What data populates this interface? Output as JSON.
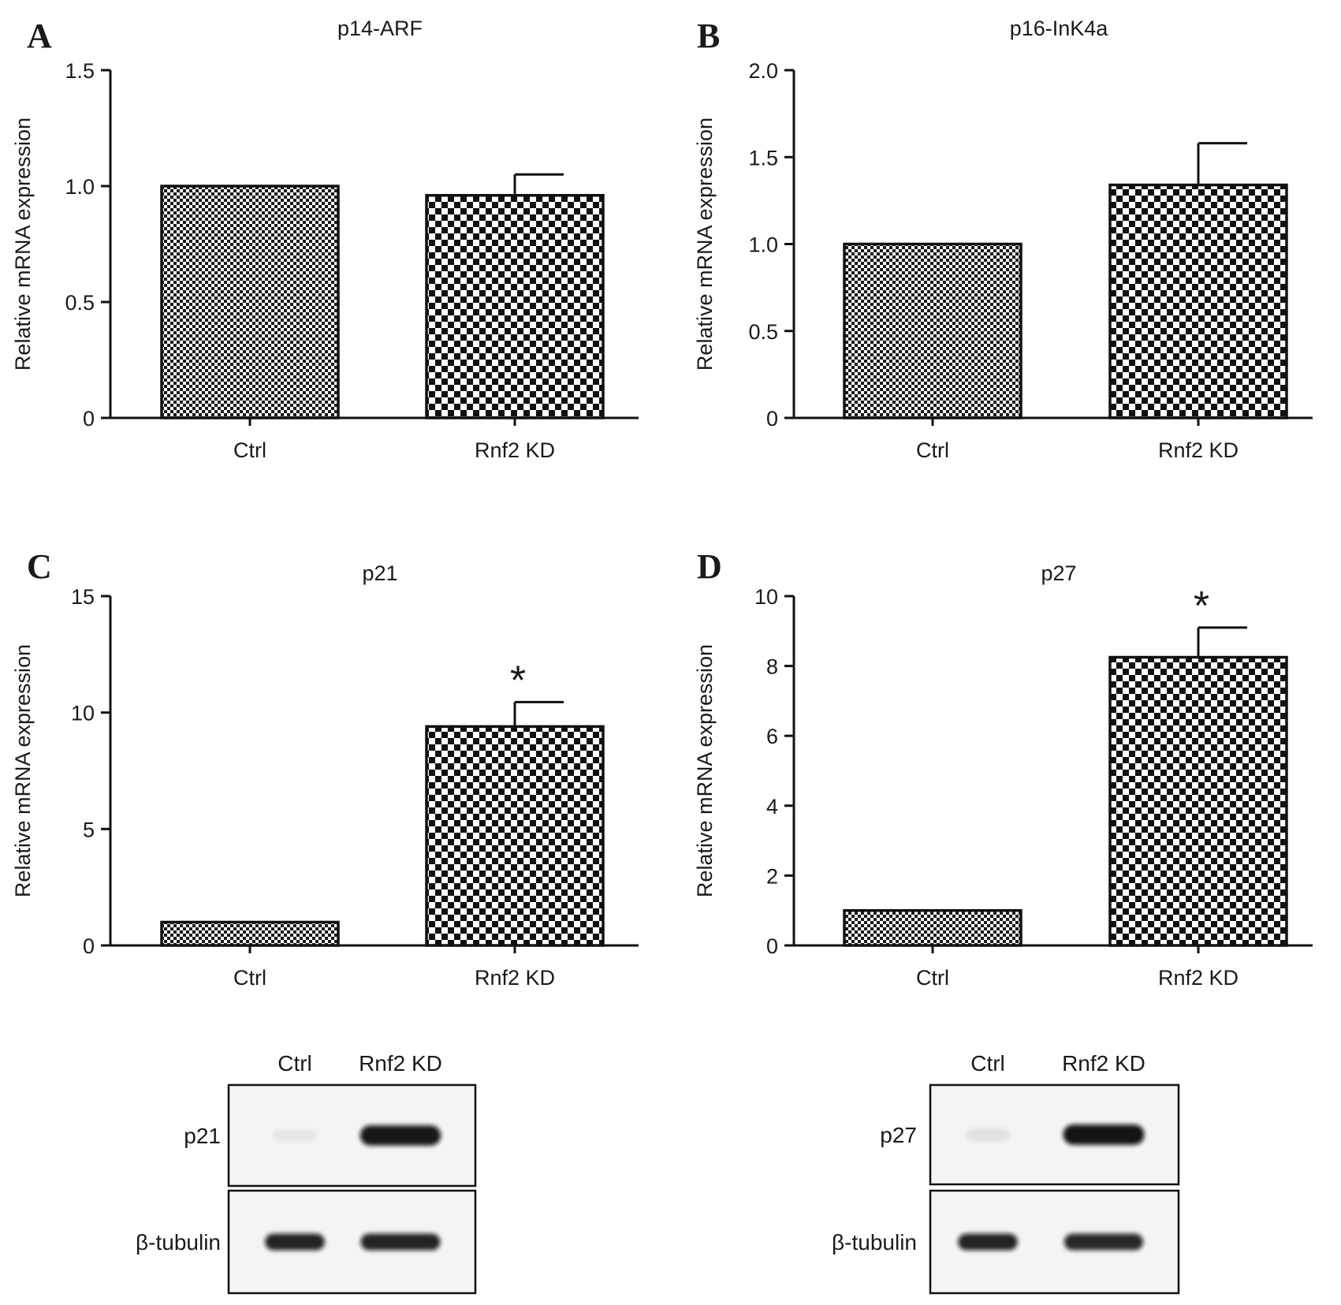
{
  "chart_data": [
    {
      "panel": "A",
      "type": "bar",
      "title": "p14-ARF",
      "ylabel": "Relative mRNA expression",
      "xlabel": "",
      "categories": [
        "Ctrl",
        "Rnf2 KD"
      ],
      "values": [
        1.0,
        0.96
      ],
      "errors": [
        0,
        0.09
      ],
      "significance": [
        "",
        ""
      ],
      "ylim": [
        0,
        1.5
      ],
      "yticks": [
        "0",
        "0.5",
        "1.0",
        "1.5"
      ],
      "patterns": [
        "fine-checker",
        "coarse-checker"
      ]
    },
    {
      "panel": "B",
      "type": "bar",
      "title": "p16-InK4a",
      "ylabel": "Relative mRNA expression",
      "xlabel": "",
      "categories": [
        "Ctrl",
        "Rnf2 KD"
      ],
      "values": [
        1.0,
        1.34
      ],
      "errors": [
        0,
        0.24
      ],
      "significance": [
        "",
        ""
      ],
      "ylim": [
        0,
        2.0
      ],
      "yticks": [
        "0",
        "0.5",
        "1.0",
        "1.5",
        "2.0"
      ],
      "patterns": [
        "fine-checker",
        "coarse-checker"
      ]
    },
    {
      "panel": "C",
      "type": "bar",
      "title": "p21",
      "ylabel": "Relative mRNA expression",
      "xlabel": "",
      "categories": [
        "Ctrl",
        "Rnf2 KD"
      ],
      "values": [
        1.0,
        9.4
      ],
      "errors": [
        0,
        1.05
      ],
      "significance": [
        "",
        "*"
      ],
      "ylim": [
        0,
        15
      ],
      "yticks": [
        "0",
        "5",
        "10",
        "15"
      ],
      "patterns": [
        "fine-checker",
        "coarse-checker"
      ]
    },
    {
      "panel": "D",
      "type": "bar",
      "title": "p27",
      "ylabel": "Relative mRNA expression",
      "xlabel": "",
      "categories": [
        "Ctrl",
        "Rnf2 KD"
      ],
      "values": [
        1.0,
        8.25
      ],
      "errors": [
        0,
        0.85
      ],
      "significance": [
        "",
        "*"
      ],
      "ylim": [
        0,
        10
      ],
      "yticks": [
        "0",
        "2",
        "4",
        "6",
        "8",
        "10"
      ],
      "patterns": [
        "fine-checker",
        "coarse-checker"
      ]
    }
  ],
  "western_blots": [
    {
      "panel": "C",
      "lanes": [
        "Ctrl",
        "Rnf2 KD"
      ],
      "proteins": [
        "p21",
        "β-tubulin"
      ],
      "band_intensity": [
        [
          0.05,
          0.95
        ],
        [
          0.9,
          0.9
        ]
      ]
    },
    {
      "panel": "D",
      "lanes": [
        "Ctrl",
        "Rnf2 KD"
      ],
      "proteins": [
        "p27",
        "β-tubulin"
      ],
      "band_intensity": [
        [
          0.08,
          0.97
        ],
        [
          0.9,
          0.88
        ]
      ]
    }
  ],
  "colors": {
    "ink": "#111111",
    "background": "#ffffff",
    "band": "#0d0d0d",
    "blot_bg": "#f4f4f4"
  }
}
